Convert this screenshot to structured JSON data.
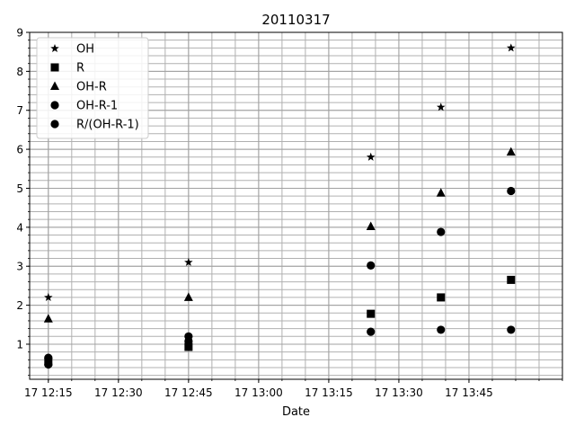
{
  "chart_data": {
    "type": "scatter",
    "title": "20110317",
    "xlabel": "Date",
    "ylabel": "",
    "x_unit": "minutes of day (17 Mar 2011)",
    "xlim": [
      731,
      845
    ],
    "ylim": [
      0.1,
      9
    ],
    "x_ticks": [
      {
        "value": 735,
        "label": "17 12:15"
      },
      {
        "value": 750,
        "label": "17 12:30"
      },
      {
        "value": 765,
        "label": "17 12:45"
      },
      {
        "value": 780,
        "label": "17 13:00"
      },
      {
        "value": 795,
        "label": "17 13:15"
      },
      {
        "value": 810,
        "label": "17 13:30"
      },
      {
        "value": 825,
        "label": "17 13:45"
      }
    ],
    "y_ticks": [
      1,
      2,
      3,
      4,
      5,
      6,
      7,
      8,
      9
    ],
    "grid": true,
    "legend_position": "top-left",
    "x": [
      735,
      765,
      804,
      819,
      834
    ],
    "series": [
      {
        "name": "OH",
        "marker": "star",
        "values": [
          2.2,
          3.1,
          5.8,
          7.08,
          8.6
        ]
      },
      {
        "name": "R",
        "marker": "square",
        "values": [
          0.55,
          0.93,
          1.78,
          2.2,
          2.65
        ]
      },
      {
        "name": "OH-R",
        "marker": "triangle",
        "values": [
          1.65,
          2.2,
          4.02,
          4.88,
          5.93
        ]
      },
      {
        "name": "OH-R-1",
        "marker": "circle",
        "values": [
          0.65,
          1.2,
          3.02,
          3.88,
          4.93
        ]
      },
      {
        "name": "R/(OH-R-1)",
        "marker": "circle",
        "values": [
          0.48,
          1.08,
          1.32,
          1.37,
          1.37
        ]
      }
    ]
  }
}
